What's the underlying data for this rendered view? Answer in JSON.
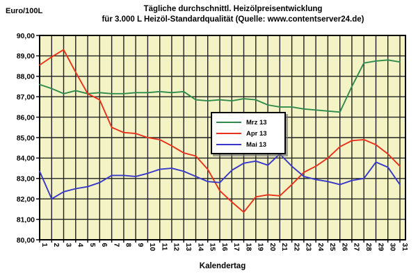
{
  "header": {
    "y_axis_unit": "Euro/100L",
    "title_line1": "Tägliche durchschnittl. Heizölpreisentwicklung",
    "title_line2": "für 3.000 L Heizöl-Standardqualität (Quelle: www.contentserver24.de)"
  },
  "chart_data": {
    "type": "line",
    "title": "Tägliche durchschnittl. Heizölpreisentwicklung für 3.000 L Heizöl-Standardqualität (Quelle: www.contentserver24.de)",
    "xlabel": "Kalendertag",
    "ylabel": "Euro/100L",
    "ylim": [
      80,
      90
    ],
    "ytick_step": 1,
    "y_tick_labels": [
      "90,00",
      "89,00",
      "88,00",
      "87,00",
      "86,00",
      "85,00",
      "84,00",
      "83,00",
      "82,00",
      "81,00",
      "80,00"
    ],
    "x": [
      1,
      2,
      3,
      4,
      5,
      6,
      7,
      8,
      9,
      10,
      11,
      12,
      13,
      14,
      15,
      16,
      17,
      18,
      19,
      20,
      21,
      22,
      23,
      24,
      25,
      26,
      27,
      28,
      29,
      30,
      31
    ],
    "grid": "both",
    "legend_position": "center",
    "plot_bg": "#F3F3C5",
    "grid_color": "#202020",
    "axis_color": "#000000",
    "series": [
      {
        "name": "Mrz 13",
        "color": "#2F8B4C",
        "values": [
          87.6,
          87.4,
          87.15,
          87.3,
          87.15,
          87.2,
          87.15,
          87.15,
          87.2,
          87.2,
          87.25,
          87.2,
          87.25,
          86.85,
          86.8,
          86.85,
          86.8,
          86.9,
          86.85,
          86.6,
          86.5,
          86.5,
          86.4,
          86.35,
          86.3,
          86.25,
          87.5,
          88.65,
          88.75,
          88.8,
          88.7
        ]
      },
      {
        "name": "Apr 13",
        "color": "#E8301A",
        "values": [
          88.55,
          88.95,
          89.3,
          88.2,
          87.15,
          86.85,
          85.5,
          85.25,
          85.2,
          85.0,
          84.9,
          84.6,
          84.25,
          84.1,
          83.45,
          82.4,
          81.85,
          81.35,
          82.1,
          82.2,
          82.15,
          82.7,
          83.3,
          83.6,
          84.0,
          84.55,
          84.85,
          84.9,
          84.65,
          84.2,
          83.6
        ]
      },
      {
        "name": "Mai 13",
        "color": "#3737C8",
        "values": [
          83.35,
          82.0,
          82.35,
          82.5,
          82.6,
          82.8,
          83.15,
          83.15,
          83.1,
          83.25,
          83.45,
          83.5,
          83.35,
          83.1,
          82.85,
          82.8,
          83.4,
          83.75,
          83.85,
          83.65,
          84.2,
          83.6,
          83.1,
          82.95,
          82.85,
          82.7,
          82.9,
          83.0,
          83.8,
          83.55,
          82.7
        ]
      }
    ]
  }
}
